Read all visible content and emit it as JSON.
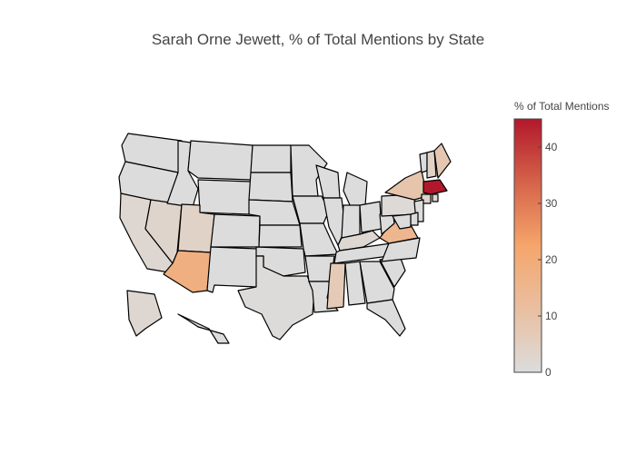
{
  "title": "Sarah Orne Jewett, % of Total Mentions by State",
  "colorbar": {
    "title": "% of Total Mentions",
    "ticks": [
      "0",
      "10",
      "20",
      "30",
      "40"
    ],
    "min": 0,
    "max": 45,
    "colors": [
      "#dcdcdc",
      "#e9bfa0",
      "#f5a56b",
      "#d5634a",
      "#b2182b"
    ]
  },
  "map_data": {
    "type": "choropleth",
    "scope": "usa",
    "values": {
      "MA": 45,
      "AZ": 18,
      "VA": 15,
      "NY": 9,
      "ME": 8,
      "MS": 7,
      "UT": 4,
      "NV": 3,
      "CA": 2,
      "AK": 2,
      "NH": 4,
      "CT": 3,
      "KY": 2,
      "RI": 2,
      "PA": 1,
      "TX": 0.5
    }
  }
}
